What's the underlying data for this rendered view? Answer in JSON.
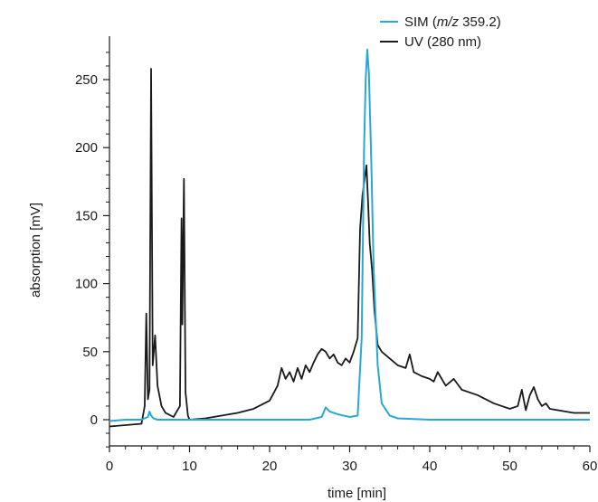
{
  "chart_data": {
    "type": "line",
    "title": "",
    "xlabel": "time [min]",
    "ylabel": "absorption [mV]",
    "xlim": [
      0,
      60
    ],
    "ylim": [
      -20,
      280
    ],
    "x_ticks": [
      "0",
      "10",
      "20",
      "30",
      "40",
      "50",
      "60"
    ],
    "y_ticks": [
      "0",
      "50",
      "100",
      "150",
      "200",
      "250"
    ],
    "grid": false,
    "legend_position": "top-right",
    "legend": [
      {
        "prefix": "SIM (",
        "italic": "m/z",
        "suffix": " 359.2)",
        "color": "#29a8d8"
      },
      {
        "prefix": "UV (280 nm)",
        "italic": "",
        "suffix": "",
        "color": "#1a1a1a"
      }
    ],
    "series": [
      {
        "name": "SIM (m/z 359.2)",
        "color": "#29a8d8",
        "x": [
          0,
          2,
          4,
          4.8,
          5.0,
          5.2,
          5.5,
          6,
          8,
          10,
          15,
          20,
          25,
          26.5,
          27,
          27.5,
          28.5,
          30,
          31,
          31.5,
          31.8,
          32.0,
          32.2,
          32.4,
          32.7,
          33,
          33.5,
          34,
          35,
          36,
          40,
          45,
          50,
          55,
          60
        ],
        "y": [
          -1,
          0,
          0,
          2,
          6,
          3,
          1,
          0,
          0,
          0,
          0,
          0,
          0,
          2,
          9,
          6,
          4,
          2,
          3,
          60,
          200,
          250,
          272,
          255,
          190,
          110,
          40,
          12,
          3,
          1,
          0,
          0,
          0,
          0,
          0
        ]
      },
      {
        "name": "UV (280 nm)",
        "color": "#1a1a1a",
        "x": [
          0,
          2,
          4,
          4.4,
          4.6,
          4.8,
          5.0,
          5.2,
          5.4,
          5.7,
          6.0,
          6.5,
          7,
          8,
          8.8,
          9.0,
          9.1,
          9.3,
          9.5,
          9.8,
          10,
          12,
          14,
          16,
          18,
          20,
          21,
          21.5,
          22,
          22.5,
          23,
          23.5,
          24,
          24.5,
          25,
          25.5,
          26,
          26.5,
          27,
          27.5,
          28,
          28.5,
          29,
          29.5,
          30,
          30.5,
          31,
          31.3,
          31.6,
          31.9,
          32.1,
          32.3,
          32.5,
          32.8,
          33.1,
          33.5,
          34,
          35,
          36,
          37,
          37.5,
          38,
          39,
          40,
          40.5,
          41,
          42,
          43,
          44,
          45,
          46,
          47,
          48,
          49,
          50,
          51,
          51.5,
          52,
          52.5,
          53,
          53.5,
          54,
          54.5,
          55,
          56,
          57,
          58,
          59,
          60
        ],
        "y": [
          -5,
          -4,
          -3,
          10,
          78,
          15,
          22,
          258,
          40,
          62,
          25,
          10,
          5,
          2,
          10,
          148,
          70,
          177,
          20,
          3,
          0,
          1,
          3,
          5,
          8,
          14,
          25,
          38,
          30,
          35,
          28,
          38,
          30,
          40,
          35,
          42,
          48,
          52,
          50,
          45,
          48,
          42,
          40,
          45,
          42,
          50,
          60,
          140,
          165,
          178,
          187,
          160,
          130,
          110,
          80,
          55,
          50,
          45,
          40,
          38,
          48,
          35,
          32,
          30,
          28,
          35,
          25,
          30,
          22,
          20,
          18,
          15,
          12,
          10,
          8,
          10,
          22,
          7,
          18,
          24,
          15,
          10,
          12,
          8,
          7,
          6,
          5,
          5,
          5
        ]
      }
    ]
  }
}
